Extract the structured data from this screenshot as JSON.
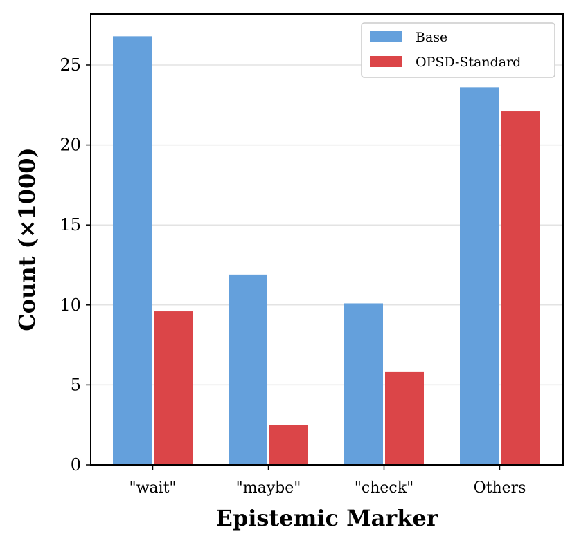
{
  "chart_data": {
    "type": "bar",
    "categories": [
      "\"wait\"",
      "\"maybe\"",
      "\"check\"",
      "Others"
    ],
    "series": [
      {
        "name": "Base",
        "values": [
          26.8,
          11.9,
          10.1,
          23.6
        ],
        "color": "#64a0dc"
      },
      {
        "name": "OPSD-Standard",
        "values": [
          9.6,
          2.5,
          5.8,
          22.1
        ],
        "color": "#db4548"
      }
    ],
    "xlabel": "Epistemic Marker",
    "ylabel": "Count (×1000)",
    "ylim": [
      0,
      28.2
    ],
    "yticks": [
      0,
      5,
      10,
      15,
      20,
      25
    ],
    "grid": "horizontal",
    "legend_position": "top-right"
  }
}
